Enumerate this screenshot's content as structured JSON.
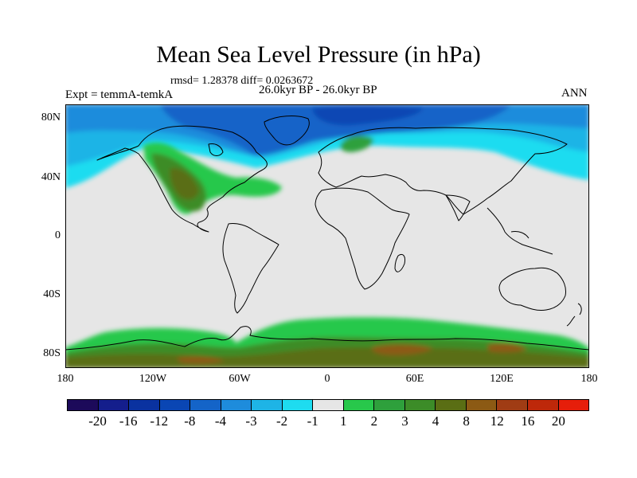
{
  "title": "Mean Sea Level Pressure (in hPa)",
  "stats_line": "rmsd= 1.28378 diff= 0.0263672",
  "experiment_label": "Expt = temmA-temkA",
  "period_label": "26.0kyr BP - 26.0kyr BP",
  "season_label": "ANN",
  "lat_labels": [
    "80N",
    "40N",
    "0",
    "40S",
    "80S"
  ],
  "lon_labels": [
    "180",
    "120W",
    "60W",
    "0",
    "60E",
    "120E",
    "180"
  ],
  "colorbar": {
    "labels": [
      "-20",
      "-16",
      "-12",
      "-8",
      "-4",
      "-3",
      "-2",
      "-1",
      "1",
      "2",
      "3",
      "4",
      "8",
      "12",
      "16",
      "20"
    ],
    "colors": [
      "#1c0a5a",
      "#141e8c",
      "#0a32a0",
      "#0a46b4",
      "#1464c8",
      "#1e8cdc",
      "#1eb4e6",
      "#1edcf0",
      "#e6e6e6",
      "#28c84b",
      "#2ea03c",
      "#3c8c28",
      "#5a6e14",
      "#8c5a14",
      "#a03c14",
      "#be280a",
      "#e61e0a"
    ]
  }
}
